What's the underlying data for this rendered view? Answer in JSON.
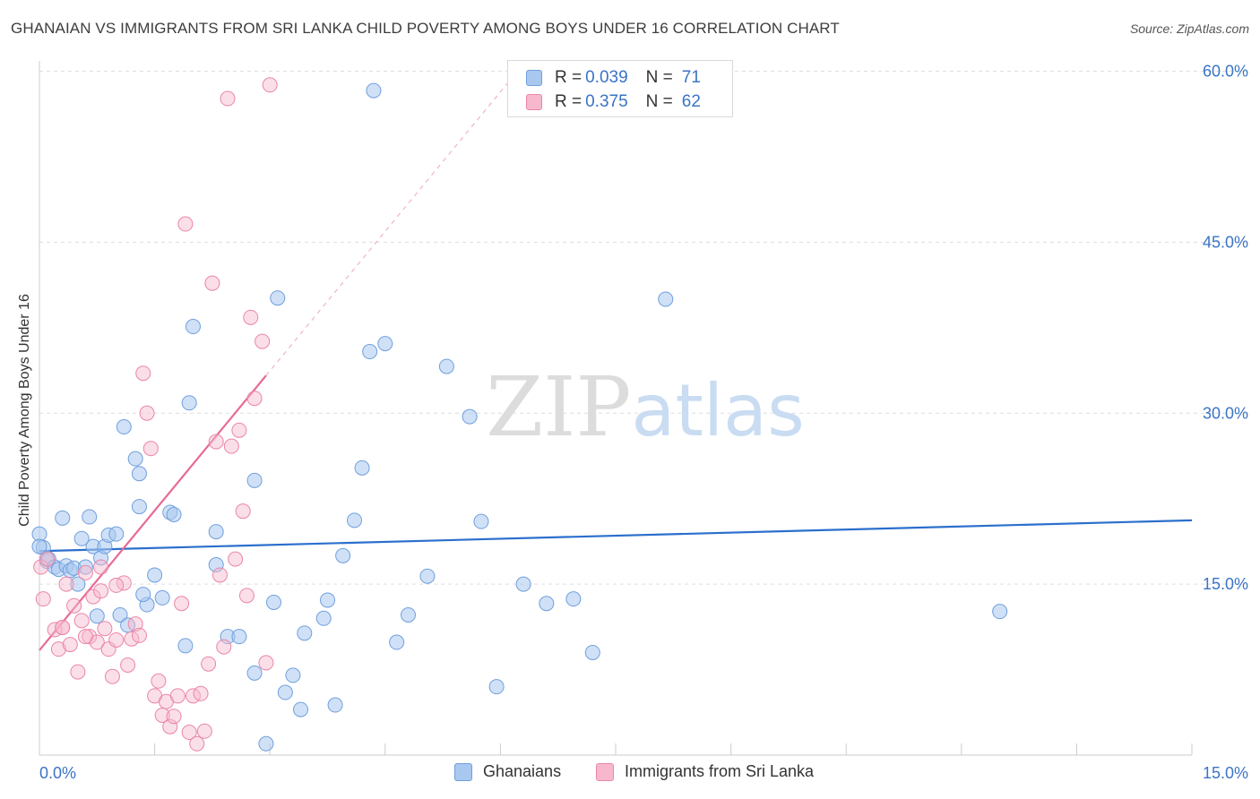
{
  "header": {
    "title": "GHANAIAN VS IMMIGRANTS FROM SRI LANKA CHILD POVERTY AMONG BOYS UNDER 16 CORRELATION CHART",
    "source": "Source: ZipAtlas.com"
  },
  "watermark": "ZIPatlas",
  "colors": {
    "blue_fill": "#a9c8f0",
    "blue_stroke": "#6f9fdd",
    "blue_line": "#2b6fcd",
    "pink_fill": "#f7b8cd",
    "pink_stroke": "#ea85a9",
    "pink_line": "#e76a96",
    "axis_text": "#3a74c6",
    "grid": "#dddddd"
  },
  "legend_top": {
    "rows": [
      {
        "r_label": "R = ",
        "r_value": "0.039",
        "n_label": "N = ",
        "n_value": "71",
        "color": "#a9c8f0"
      },
      {
        "r_label": "R = ",
        "r_value": "0.375",
        "n_label": "N = ",
        "n_value": "62",
        "color": "#f7b8cd"
      }
    ]
  },
  "legend_bottom": {
    "items": [
      {
        "label": "Ghanaians",
        "color": "#a9c8f0"
      },
      {
        "label": "Immigrants from Sri Lanka",
        "color": "#f7b8cd"
      }
    ]
  },
  "chart_data": {
    "type": "scatter",
    "title": "GHANAIAN VS IMMIGRANTS FROM SRI LANKA CHILD POVERTY AMONG BOYS UNDER 16 CORRELATION CHART",
    "xlabel": "",
    "ylabel": "Child Poverty Among Boys Under 16",
    "xlim": [
      0,
      15
    ],
    "ylim": [
      0,
      60
    ],
    "x_tick_labels": [
      "0.0%",
      "15.0%"
    ],
    "y_ticks": [
      15,
      30,
      45,
      60
    ],
    "y_tick_labels": [
      "15.0%",
      "30.0%",
      "45.0%",
      "60.0%"
    ],
    "grid": true,
    "series": [
      {
        "name": "Ghanaians",
        "r": 0.039,
        "n": 71,
        "trend": {
          "x": [
            0,
            15
          ],
          "y": [
            17.9,
            20.6
          ]
        },
        "points": [
          [
            0.05,
            18.2
          ],
          [
            0.1,
            17.0
          ],
          [
            0.12,
            17.2
          ],
          [
            0.2,
            16.5
          ],
          [
            0.25,
            16.3
          ],
          [
            0.3,
            20.8
          ],
          [
            0.35,
            16.6
          ],
          [
            0.4,
            16.2
          ],
          [
            0.45,
            16.4
          ],
          [
            0.5,
            15.0
          ],
          [
            0.55,
            19.0
          ],
          [
            0.6,
            16.5
          ],
          [
            0.65,
            20.9
          ],
          [
            0.75,
            12.2
          ],
          [
            0.7,
            18.3
          ],
          [
            0.8,
            17.3
          ],
          [
            0.85,
            18.3
          ],
          [
            0.9,
            19.3
          ],
          [
            1.0,
            19.4
          ],
          [
            1.1,
            28.8
          ],
          [
            1.25,
            26.0
          ],
          [
            1.3,
            24.7
          ],
          [
            1.05,
            12.3
          ],
          [
            1.3,
            21.8
          ],
          [
            1.4,
            13.2
          ],
          [
            1.15,
            11.4
          ],
          [
            1.35,
            14.1
          ],
          [
            1.5,
            15.8
          ],
          [
            1.6,
            13.8
          ],
          [
            1.7,
            21.3
          ],
          [
            1.75,
            21.1
          ],
          [
            1.9,
            9.6
          ],
          [
            1.95,
            30.9
          ],
          [
            2.0,
            37.6
          ],
          [
            2.3,
            16.7
          ],
          [
            2.3,
            19.6
          ],
          [
            2.45,
            10.4
          ],
          [
            2.6,
            10.4
          ],
          [
            2.8,
            24.1
          ],
          [
            2.8,
            7.2
          ],
          [
            2.95,
            1.0
          ],
          [
            3.1,
            40.1
          ],
          [
            3.05,
            13.4
          ],
          [
            3.2,
            5.5
          ],
          [
            3.3,
            7.0
          ],
          [
            3.4,
            4.0
          ],
          [
            3.45,
            10.7
          ],
          [
            3.7,
            12.0
          ],
          [
            3.75,
            13.6
          ],
          [
            3.85,
            4.4
          ],
          [
            3.95,
            17.5
          ],
          [
            4.1,
            20.6
          ],
          [
            4.2,
            25.2
          ],
          [
            4.3,
            35.4
          ],
          [
            4.35,
            58.3
          ],
          [
            4.5,
            36.1
          ],
          [
            4.65,
            9.9
          ],
          [
            4.8,
            12.3
          ],
          [
            5.05,
            15.7
          ],
          [
            5.3,
            34.1
          ],
          [
            5.6,
            29.7
          ],
          [
            5.75,
            20.5
          ],
          [
            5.95,
            6.0
          ],
          [
            6.3,
            15.0
          ],
          [
            6.6,
            13.3
          ],
          [
            6.95,
            13.7
          ],
          [
            7.2,
            9.0
          ],
          [
            8.15,
            40.0
          ],
          [
            12.5,
            12.6
          ],
          [
            0.0,
            19.4
          ],
          [
            0.0,
            18.3
          ]
        ]
      },
      {
        "name": "Immigrants from Sri Lanka",
        "r": 0.375,
        "n": 62,
        "trend": {
          "x": [
            0,
            2.95
          ],
          "y": [
            9.2,
            33.3
          ]
        },
        "trend_dashed": {
          "x": [
            2.95,
            6.1
          ],
          "y": [
            33.3,
            59.0
          ]
        },
        "points": [
          [
            0.02,
            16.5
          ],
          [
            0.05,
            13.7
          ],
          [
            0.1,
            17.2
          ],
          [
            0.2,
            11.0
          ],
          [
            0.25,
            9.3
          ],
          [
            0.3,
            11.2
          ],
          [
            0.35,
            15.0
          ],
          [
            0.4,
            9.7
          ],
          [
            0.45,
            13.1
          ],
          [
            0.5,
            7.3
          ],
          [
            0.55,
            11.8
          ],
          [
            0.6,
            16.0
          ],
          [
            0.65,
            10.4
          ],
          [
            0.7,
            13.9
          ],
          [
            0.75,
            9.9
          ],
          [
            0.8,
            14.4
          ],
          [
            0.85,
            11.1
          ],
          [
            0.9,
            9.3
          ],
          [
            0.95,
            6.9
          ],
          [
            1.0,
            10.1
          ],
          [
            1.1,
            15.1
          ],
          [
            1.15,
            7.9
          ],
          [
            1.2,
            10.2
          ],
          [
            1.25,
            11.5
          ],
          [
            1.3,
            10.5
          ],
          [
            1.35,
            33.5
          ],
          [
            1.4,
            30.0
          ],
          [
            1.45,
            26.9
          ],
          [
            1.5,
            5.2
          ],
          [
            1.55,
            6.5
          ],
          [
            1.6,
            3.5
          ],
          [
            1.65,
            4.7
          ],
          [
            1.7,
            2.5
          ],
          [
            1.75,
            3.4
          ],
          [
            1.8,
            5.2
          ],
          [
            1.85,
            13.3
          ],
          [
            1.9,
            46.6
          ],
          [
            1.95,
            2.0
          ],
          [
            2.0,
            5.2
          ],
          [
            2.05,
            1.0
          ],
          [
            2.1,
            5.4
          ],
          [
            2.15,
            2.1
          ],
          [
            2.2,
            8.0
          ],
          [
            2.25,
            41.4
          ],
          [
            2.3,
            27.5
          ],
          [
            2.35,
            15.8
          ],
          [
            2.4,
            9.5
          ],
          [
            2.45,
            57.6
          ],
          [
            2.5,
            27.1
          ],
          [
            2.55,
            17.2
          ],
          [
            2.6,
            28.5
          ],
          [
            2.65,
            21.4
          ],
          [
            2.7,
            14.0
          ],
          [
            2.75,
            38.4
          ],
          [
            2.8,
            31.3
          ],
          [
            2.9,
            36.3
          ],
          [
            2.95,
            8.1
          ],
          [
            3.0,
            58.8
          ],
          [
            0.8,
            16.5
          ],
          [
            0.6,
            10.4
          ],
          [
            1.0,
            14.9
          ],
          [
            0.3,
            11.2
          ]
        ]
      }
    ]
  }
}
